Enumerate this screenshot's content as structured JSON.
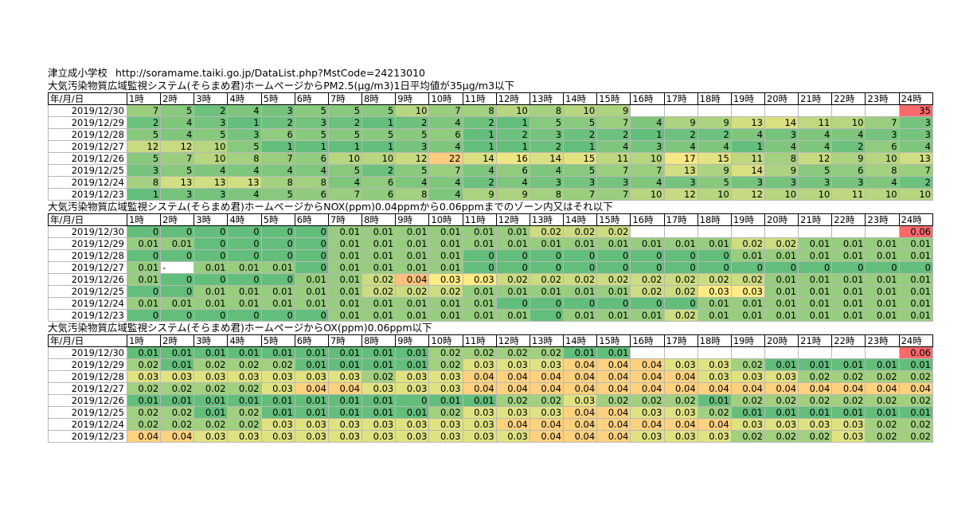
{
  "school": "津立成小学校",
  "url": "http://soramame.taiki.go.jp/DataList.php?MstCode=24213010",
  "colors": {
    "low": "#63BE7B",
    "mid": "#FFEB84",
    "high": "#F8696B"
  },
  "header_left": "年/月/日",
  "hours": [
    "1時",
    "2時",
    "3時",
    "4時",
    "5時",
    "6時",
    "7時",
    "8時",
    "9時",
    "10時",
    "11時",
    "12時",
    "13時",
    "14時",
    "15時",
    "16時",
    "17時",
    "18時",
    "19時",
    "20時",
    "21時",
    "22時",
    "23時",
    "24時"
  ],
  "tables": [
    {
      "title": "大気汚染物質広域監視システム(そらまめ君)ホームページからPM2.5(μg/m3)1日平均値が35μg/m3以下",
      "scale": [
        1,
        18,
        35
      ],
      "rows": [
        {
          "date": "2019/12/30",
          "values": [
            "7",
            "5",
            "2",
            "4",
            "3",
            "5",
            "5",
            "5",
            "10",
            "7",
            "8",
            "10",
            "8",
            "10",
            "9",
            "",
            "",
            "",
            "",
            "",
            "",
            "",
            "",
            "35"
          ]
        },
        {
          "date": "2019/12/29",
          "values": [
            "2",
            "4",
            "3",
            "1",
            "2",
            "3",
            "2",
            "1",
            "2",
            "4",
            "2",
            "1",
            "5",
            "5",
            "7",
            "4",
            "9",
            "9",
            "13",
            "14",
            "11",
            "10",
            "7",
            "3"
          ]
        },
        {
          "date": "2019/12/28",
          "values": [
            "5",
            "4",
            "5",
            "3",
            "6",
            "5",
            "5",
            "5",
            "5",
            "6",
            "1",
            "2",
            "3",
            "2",
            "2",
            "1",
            "2",
            "2",
            "4",
            "3",
            "4",
            "4",
            "3",
            "3"
          ]
        },
        {
          "date": "2019/12/27",
          "values": [
            "12",
            "12",
            "10",
            "5",
            "1",
            "1",
            "1",
            "1",
            "3",
            "4",
            "1",
            "1",
            "2",
            "1",
            "4",
            "3",
            "4",
            "4",
            "1",
            "4",
            "4",
            "2",
            "6",
            "4"
          ]
        },
        {
          "date": "2019/12/26",
          "values": [
            "5",
            "7",
            "10",
            "8",
            "7",
            "6",
            "10",
            "10",
            "12",
            "22",
            "14",
            "16",
            "14",
            "15",
            "11",
            "10",
            "17",
            "15",
            "11",
            "8",
            "12",
            "9",
            "10",
            "13"
          ]
        },
        {
          "date": "2019/12/25",
          "values": [
            "3",
            "5",
            "4",
            "4",
            "4",
            "4",
            "5",
            "2",
            "5",
            "7",
            "4",
            "6",
            "4",
            "5",
            "7",
            "7",
            "13",
            "9",
            "14",
            "9",
            "5",
            "6",
            "8",
            "7"
          ]
        },
        {
          "date": "2019/12/24",
          "values": [
            "8",
            "13",
            "13",
            "13",
            "8",
            "8",
            "4",
            "6",
            "4",
            "4",
            "2",
            "4",
            "3",
            "3",
            "3",
            "4",
            "3",
            "5",
            "3",
            "3",
            "3",
            "3",
            "4",
            "2"
          ]
        },
        {
          "date": "2019/12/23",
          "values": [
            "1",
            "3",
            "3",
            "4",
            "5",
            "6",
            "7",
            "6",
            "8",
            "4",
            "9",
            "9",
            "8",
            "7",
            "7",
            "10",
            "12",
            "10",
            "12",
            "10",
            "10",
            "11",
            "10",
            "10"
          ]
        }
      ]
    },
    {
      "title": "大気汚染物質広域監視システム(そらまめ君)ホームページからNOX(ppm)0.04ppmから0.06ppmまでのゾーン内又はそれ以下",
      "scale": [
        0,
        0.03,
        0.06
      ],
      "rows": [
        {
          "date": "2019/12/30",
          "values": [
            "0",
            "0",
            "0",
            "0",
            "0",
            "0",
            "0.01",
            "0.01",
            "0.01",
            "0.01",
            "0.01",
            "0.01",
            "0.02",
            "0.02",
            "0.02",
            "",
            "",
            "",
            "",
            "",
            "",
            "",
            "",
            "0.06"
          ]
        },
        {
          "date": "2019/12/29",
          "values": [
            "0.01",
            "0.01",
            "0",
            "0",
            "0",
            "0",
            "0.01",
            "0.01",
            "0.01",
            "0.01",
            "0.01",
            "0.01",
            "0.01",
            "0.01",
            "0.01",
            "0.01",
            "0.01",
            "0.01",
            "0.02",
            "0.02",
            "0.01",
            "0.01",
            "0.01",
            "0.01"
          ]
        },
        {
          "date": "2019/12/28",
          "values": [
            "0",
            "0",
            "0",
            "0",
            "0",
            "0",
            "0.01",
            "0.01",
            "0.01",
            "0.01",
            "0",
            "0",
            "0",
            "0",
            "0",
            "0",
            "0",
            "0",
            "0.01",
            "0.01",
            "0.01",
            "0.01",
            "0.01",
            "0.01"
          ]
        },
        {
          "date": "2019/12/27",
          "values": [
            "0.01",
            "-",
            "0.01",
            "0.01",
            "0.01",
            "0",
            "0.01",
            "0.01",
            "0.01",
            "0.01",
            "0",
            "0",
            "0",
            "0",
            "0",
            "0",
            "0",
            "0",
            "0",
            "0",
            "0",
            "0",
            "0",
            "0"
          ]
        },
        {
          "date": "2019/12/26",
          "values": [
            "0.01",
            "0",
            "0",
            "0",
            "0",
            "0.01",
            "0.01",
            "0.02",
            "0.04",
            "0.03",
            "0.03",
            "0.02",
            "0.02",
            "0.02",
            "0.02",
            "0.02",
            "0.02",
            "0.02",
            "0.02",
            "0.01",
            "0.01",
            "0.01",
            "0.01",
            "0.01"
          ]
        },
        {
          "date": "2019/12/25",
          "values": [
            "0",
            "0",
            "0.01",
            "0.01",
            "0.01",
            "0.01",
            "0.01",
            "0.02",
            "0.02",
            "0.02",
            "0.01",
            "0.01",
            "0.01",
            "0.01",
            "0.01",
            "0.02",
            "0.02",
            "0.03",
            "0.03",
            "0.01",
            "0.01",
            "0.01",
            "0.01",
            "0.01"
          ]
        },
        {
          "date": "2019/12/24",
          "values": [
            "0.01",
            "0.01",
            "0.01",
            "0.01",
            "0.01",
            "0.01",
            "0.01",
            "0.01",
            "0.01",
            "0.01",
            "0.01",
            "0",
            "0",
            "0",
            "0",
            "0",
            "0",
            "0.01",
            "0.01",
            "0.01",
            "0.01",
            "0.01",
            "0.01",
            "0.01"
          ]
        },
        {
          "date": "2019/12/23",
          "values": [
            "0",
            "0",
            "0",
            "0",
            "0",
            "0",
            "0.01",
            "0.01",
            "0.01",
            "0.01",
            "0.01",
            "0.01",
            "0",
            "0.01",
            "0.01",
            "0.01",
            "0.02",
            "0.01",
            "0.01",
            "0.01",
            "0.01",
            "0.01",
            "0.01",
            "0.01"
          ]
        }
      ]
    },
    {
      "title": "大気汚染物質広域監視システム(そらまめ君)ホームページからOX(ppm)0.06ppm以下",
      "scale": [
        0.01,
        0.035,
        0.06
      ],
      "rows": [
        {
          "date": "2019/12/30",
          "values": [
            "0.01",
            "0.01",
            "0.01",
            "0.01",
            "0.01",
            "0.01",
            "0.01",
            "0.01",
            "0.01",
            "0.02",
            "0.02",
            "0.02",
            "0.02",
            "0.01",
            "0.01",
            "",
            "",
            "",
            "",
            "",
            "",
            "",
            "",
            "0.06"
          ]
        },
        {
          "date": "2019/12/29",
          "values": [
            "0.02",
            "0.01",
            "0.02",
            "0.02",
            "0.02",
            "0.01",
            "0.01",
            "0.01",
            "0.01",
            "0.02",
            "0.03",
            "0.03",
            "0.03",
            "0.04",
            "0.04",
            "0.04",
            "0.03",
            "0.03",
            "0.02",
            "0.01",
            "0.01",
            "0.01",
            "0.01",
            "0.01"
          ]
        },
        {
          "date": "2019/12/28",
          "values": [
            "0.03",
            "0.03",
            "0.03",
            "0.03",
            "0.03",
            "0.03",
            "0.03",
            "0.02",
            "0.03",
            "0.03",
            "0.04",
            "0.04",
            "0.04",
            "0.04",
            "0.04",
            "0.04",
            "0.04",
            "0.03",
            "0.03",
            "0.03",
            "0.02",
            "0.02",
            "0.02",
            "0.02"
          ]
        },
        {
          "date": "2019/12/27",
          "values": [
            "0.02",
            "0.02",
            "0.02",
            "0.02",
            "0.03",
            "0.04",
            "0.04",
            "0.03",
            "0.03",
            "0.03",
            "0.04",
            "0.04",
            "0.04",
            "0.04",
            "0.04",
            "0.04",
            "0.04",
            "0.04",
            "0.04",
            "0.04",
            "0.04",
            "0.04",
            "0.04",
            "0.04"
          ]
        },
        {
          "date": "2019/12/26",
          "values": [
            "0.01",
            "0.01",
            "0.01",
            "0.01",
            "0.01",
            "0.01",
            "0.01",
            "0.01",
            "0",
            "0.01",
            "0.01",
            "0.02",
            "0.02",
            "0.03",
            "0.02",
            "0.02",
            "0.02",
            "0.01",
            "0.02",
            "0.02",
            "0.02",
            "0.02",
            "0.02",
            "0.02"
          ]
        },
        {
          "date": "2019/12/25",
          "values": [
            "0.02",
            "0.02",
            "0.01",
            "0.02",
            "0.01",
            "0.01",
            "0.01",
            "0.01",
            "0.01",
            "0.02",
            "0.03",
            "0.03",
            "0.03",
            "0.04",
            "0.04",
            "0.03",
            "0.03",
            "0.02",
            "0.01",
            "0.01",
            "0.01",
            "0.01",
            "0.01",
            "0.01"
          ]
        },
        {
          "date": "2019/12/24",
          "values": [
            "0.02",
            "0.02",
            "0.02",
            "0.02",
            "0.03",
            "0.03",
            "0.03",
            "0.03",
            "0.03",
            "0.03",
            "0.03",
            "0.04",
            "0.04",
            "0.04",
            "0.04",
            "0.04",
            "0.04",
            "0.04",
            "0.03",
            "0.03",
            "0.03",
            "0.03",
            "0.02",
            "0.02"
          ]
        },
        {
          "date": "2019/12/23",
          "values": [
            "0.04",
            "0.04",
            "0.03",
            "0.03",
            "0.03",
            "0.03",
            "0.03",
            "0.03",
            "0.03",
            "0.03",
            "0.03",
            "0.03",
            "0.04",
            "0.04",
            "0.04",
            "0.03",
            "0.03",
            "0.03",
            "0.02",
            "0.02",
            "0.02",
            "0.03",
            "0.02",
            "0.02"
          ]
        }
      ]
    }
  ]
}
